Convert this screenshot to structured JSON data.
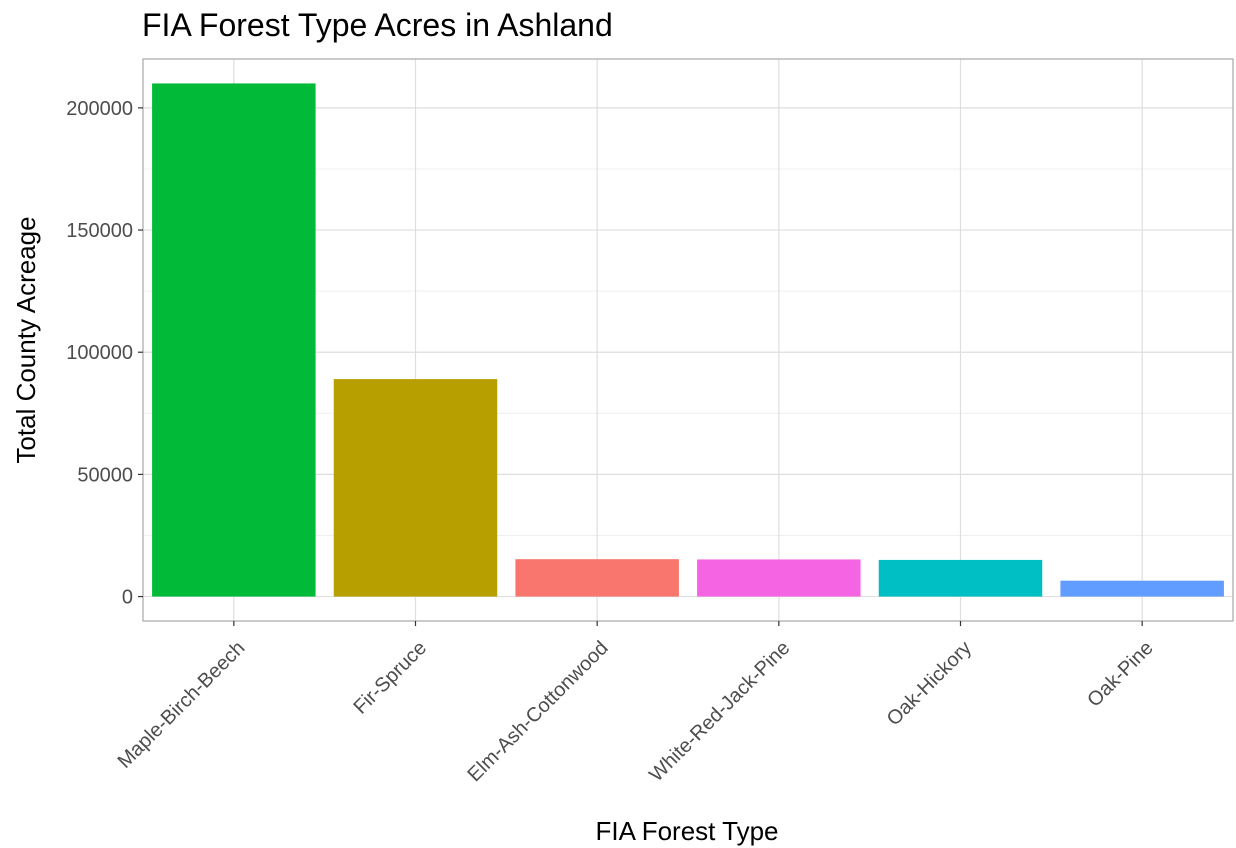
{
  "chart_data": {
    "type": "bar",
    "title": "FIA Forest Type Acres in Ashland",
    "xlabel": "FIA Forest Type",
    "ylabel": "Total County Acreage",
    "categories": [
      "Maple-Birch-Beech",
      "Fir-Spruce",
      "Elm-Ash-Cottonwood",
      "White-Red-Jack-Pine",
      "Oak-Hickory",
      "Oak-Pine"
    ],
    "values": [
      210000,
      89000,
      15300,
      15200,
      15000,
      6500
    ],
    "colors": [
      "#00BA38",
      "#B79F00",
      "#F8766D",
      "#F564E3",
      "#00BFC4",
      "#619CFF"
    ],
    "yticks": [
      0,
      50000,
      100000,
      150000,
      200000
    ],
    "ytick_labels": [
      "0",
      "50000",
      "100000",
      "150000",
      "200000"
    ],
    "ylim": [
      -10000,
      220000
    ],
    "grid": true,
    "legend": "none"
  }
}
